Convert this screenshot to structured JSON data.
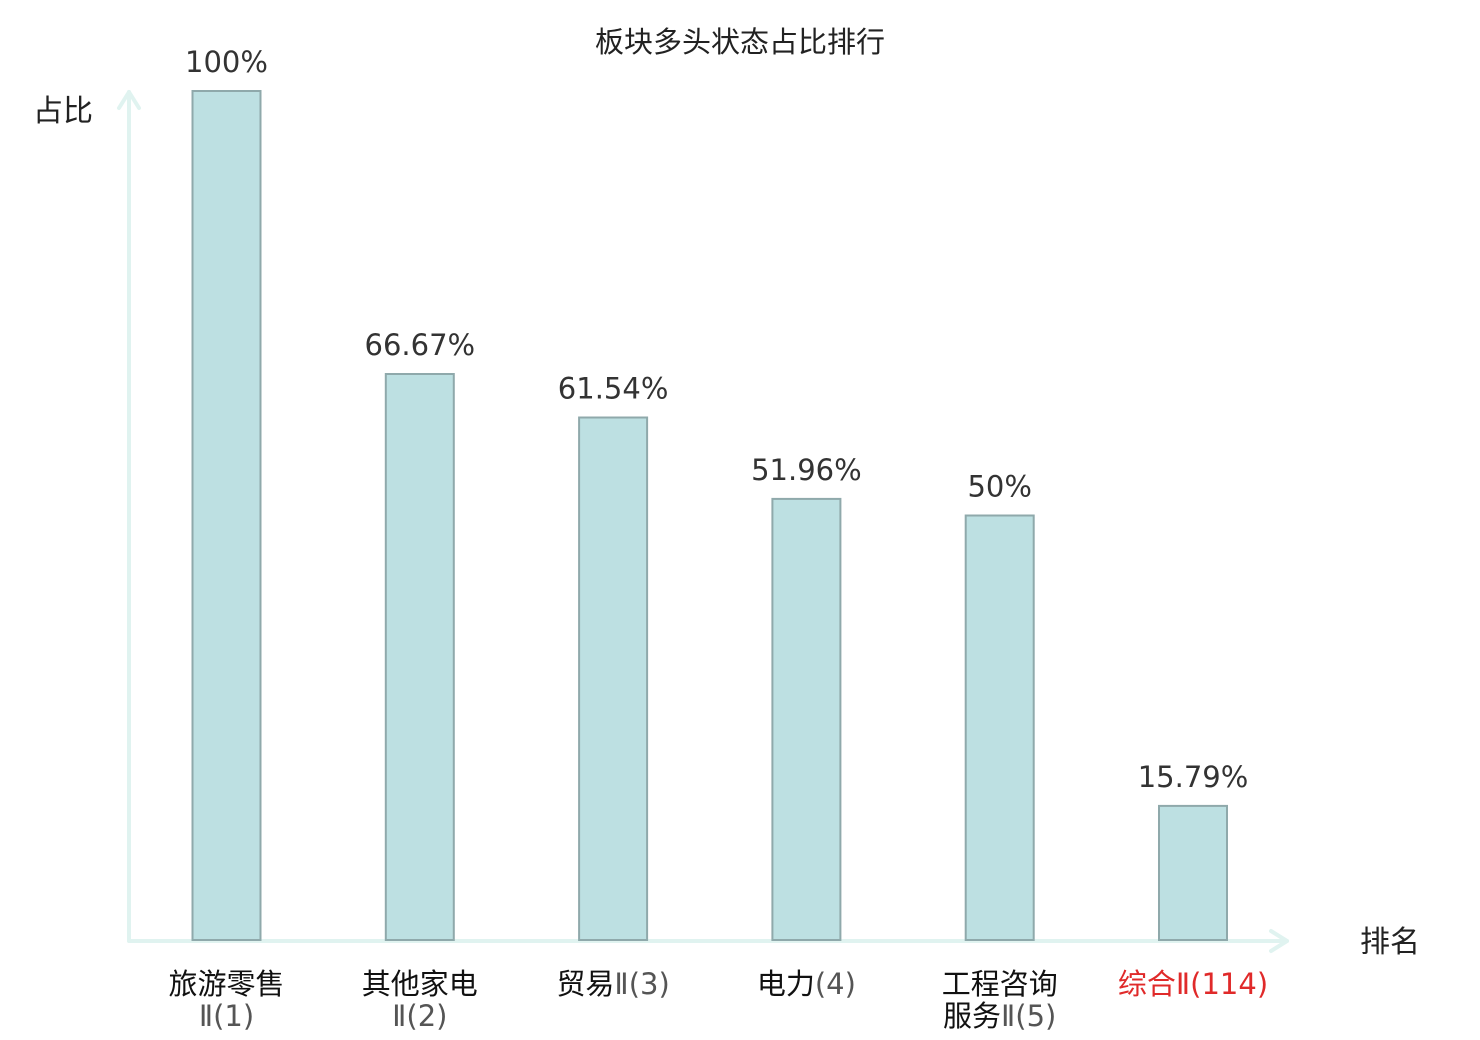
{
  "chart_data": {
    "type": "bar",
    "title": "板块多头状态占比排行",
    "xlabel": "排名",
    "ylabel": "占比",
    "ylim": [
      0,
      100
    ],
    "grid": false,
    "legend": "none",
    "categories": [
      {
        "lines": [
          {
            "name": "旅游零售",
            "suffix": ""
          },
          {
            "name": "",
            "suffix": "Ⅱ(1)"
          }
        ],
        "highlight": false
      },
      {
        "lines": [
          {
            "name": "其他家电",
            "suffix": ""
          },
          {
            "name": "",
            "suffix": "Ⅱ(2)"
          }
        ],
        "highlight": false
      },
      {
        "lines": [
          {
            "name": "贸易",
            "suffix": "Ⅱ(3)"
          }
        ],
        "highlight": false
      },
      {
        "lines": [
          {
            "name": "电力",
            "suffix": "(4)"
          }
        ],
        "highlight": false
      },
      {
        "lines": [
          {
            "name": "工程咨询",
            "suffix": ""
          },
          {
            "name": "服务",
            "suffix": "Ⅱ(5)"
          }
        ],
        "highlight": false
      },
      {
        "lines": [
          {
            "name": "综合",
            "suffix": "Ⅱ(114)"
          }
        ],
        "highlight": true
      }
    ],
    "values": [
      100,
      66.67,
      61.54,
      51.96,
      50,
      15.79
    ],
    "value_labels": [
      "100%",
      "66.67%",
      "61.54%",
      "51.96%",
      "50%",
      "15.79%"
    ],
    "colors": {
      "bar_fill": "#bde0e2",
      "bar_stroke": "#8fa9ab",
      "axis": "#e0f3f0",
      "highlight_label": "#e02a2a",
      "value_label": "#333333"
    }
  }
}
